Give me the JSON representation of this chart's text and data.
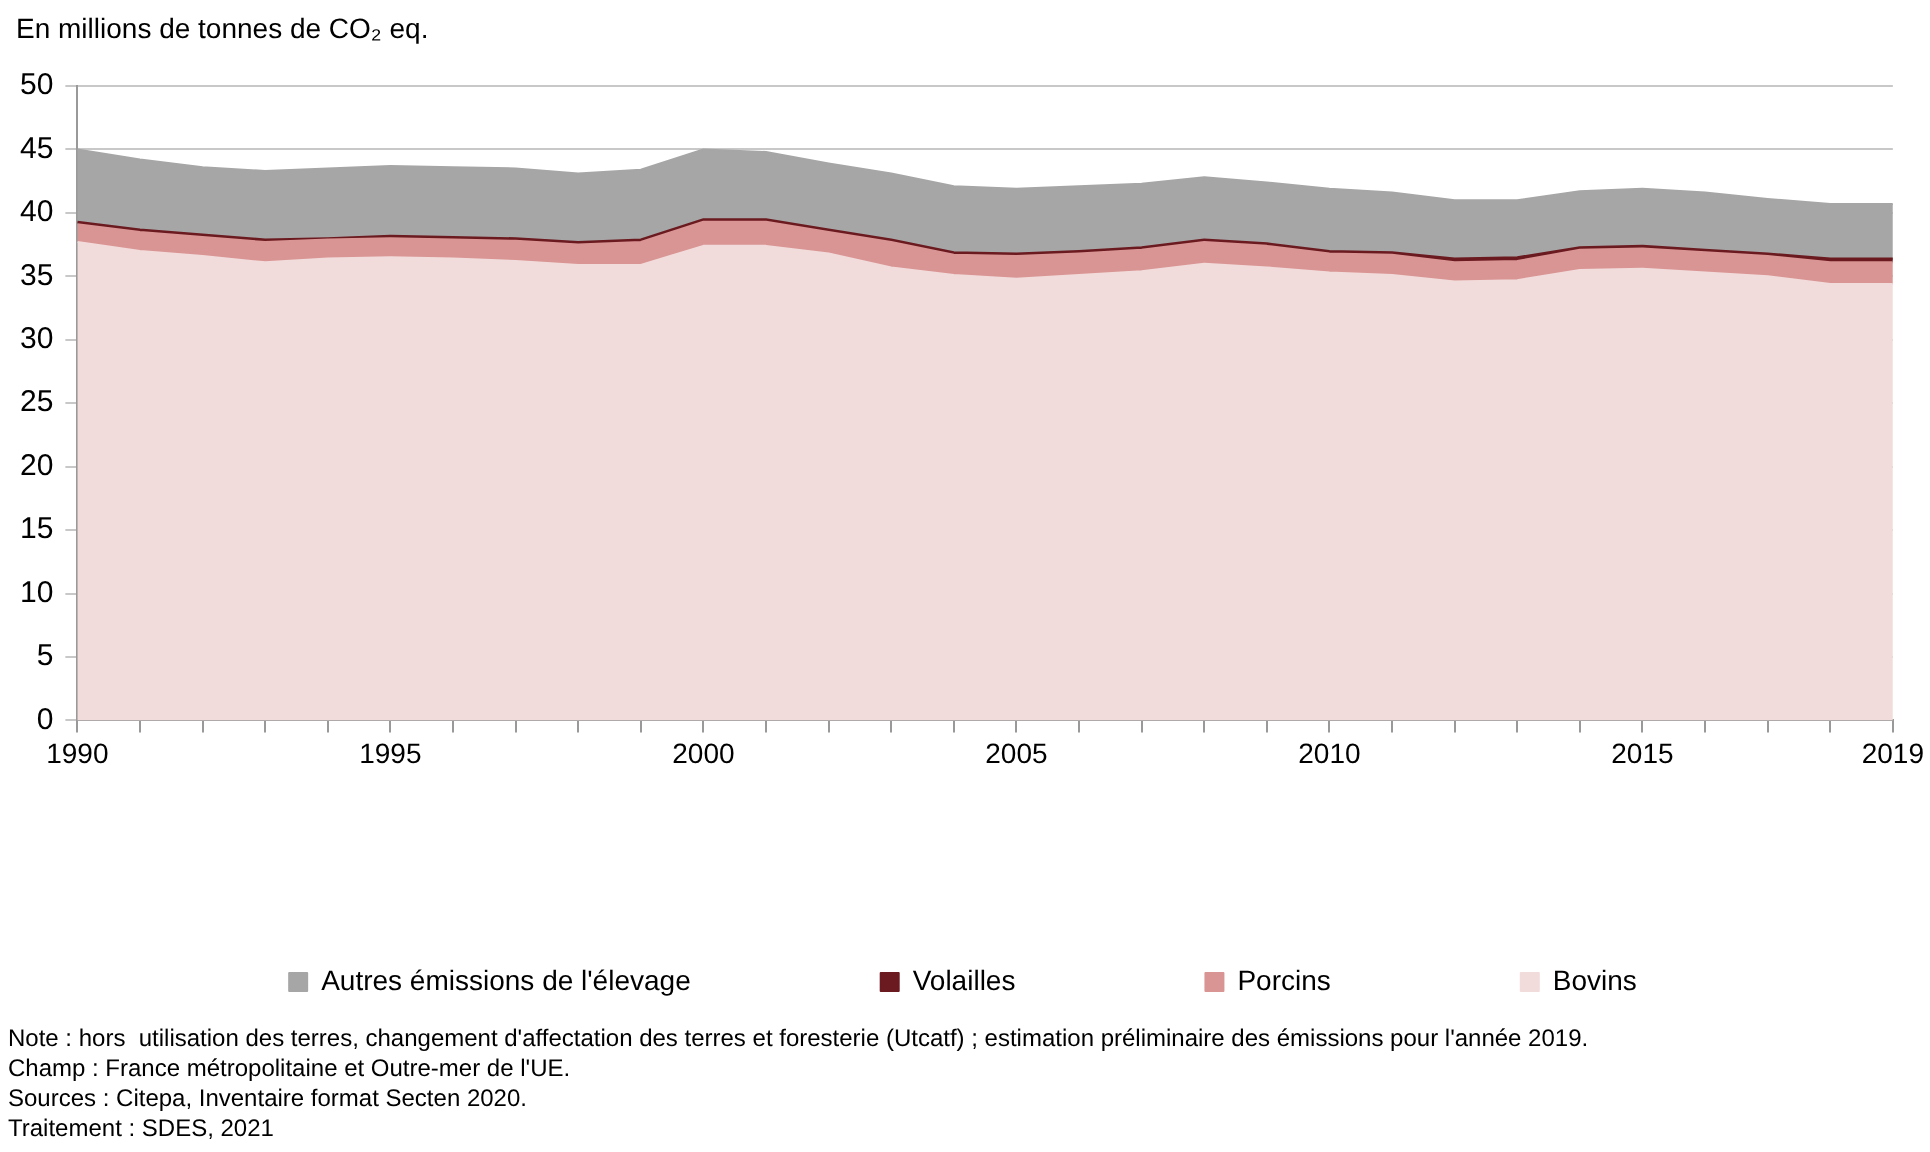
{
  "chart_data": {
    "type": "area",
    "stacked": true,
    "ylabel": "En millions de tonnes de CO₂ eq.",
    "x": [
      1990,
      1991,
      1992,
      1993,
      1994,
      1995,
      1996,
      1997,
      1998,
      1999,
      2000,
      2001,
      2002,
      2003,
      2004,
      2005,
      2006,
      2007,
      2008,
      2009,
      2010,
      2011,
      2012,
      2013,
      2014,
      2015,
      2016,
      2017,
      2018,
      2019
    ],
    "series": [
      {
        "name": "Bovins",
        "color": "#f2dcdb",
        "values": [
          37.7,
          37.0,
          36.6,
          36.1,
          36.4,
          36.5,
          36.4,
          36.2,
          35.9,
          35.9,
          37.4,
          37.4,
          36.8,
          35.7,
          35.1,
          34.8,
          35.1,
          35.4,
          36.0,
          35.7,
          35.3,
          35.1,
          34.6,
          34.7,
          35.5,
          35.6,
          35.3,
          35.0,
          34.4,
          34.4
        ]
      },
      {
        "name": "Porcins",
        "color": "#d99594",
        "values": [
          1.4,
          1.5,
          1.5,
          1.6,
          1.5,
          1.5,
          1.5,
          1.6,
          1.6,
          1.8,
          1.9,
          1.9,
          1.7,
          2.0,
          1.6,
          1.8,
          1.7,
          1.7,
          1.7,
          1.7,
          1.5,
          1.6,
          1.5,
          1.5,
          1.6,
          1.6,
          1.6,
          1.6,
          1.7,
          1.7
        ]
      },
      {
        "name": "Volailles",
        "color": "#6b1a1f",
        "values": [
          0.2,
          0.2,
          0.2,
          0.2,
          0.1,
          0.2,
          0.2,
          0.2,
          0.2,
          0.2,
          0.2,
          0.2,
          0.2,
          0.2,
          0.2,
          0.2,
          0.2,
          0.2,
          0.2,
          0.2,
          0.2,
          0.2,
          0.3,
          0.3,
          0.2,
          0.2,
          0.2,
          0.2,
          0.3,
          0.3
        ]
      },
      {
        "name": "Autres émissions de l'élevage",
        "color": "#a6a6a6",
        "values": [
          5.7,
          5.5,
          5.3,
          5.4,
          5.5,
          5.5,
          5.5,
          5.5,
          5.4,
          5.5,
          5.5,
          5.3,
          5.2,
          5.2,
          5.2,
          5.1,
          5.1,
          5.0,
          4.9,
          4.8,
          4.9,
          4.7,
          4.6,
          4.5,
          4.4,
          4.5,
          4.5,
          4.3,
          4.3,
          4.3
        ]
      }
    ],
    "xlim": [
      1990,
      2019
    ],
    "xticks": [
      1990,
      {
        "value": 1991,
        "label": null
      },
      {
        "value": 1992,
        "label": null
      },
      {
        "value": 1993,
        "label": null
      },
      {
        "value": 1994,
        "label": null
      },
      1995,
      {
        "value": 1996,
        "label": null
      },
      {
        "value": 1997,
        "label": null
      },
      {
        "value": 1998,
        "label": null
      },
      {
        "value": 1999,
        "label": null
      },
      2000,
      {
        "value": 2001,
        "label": null
      },
      {
        "value": 2002,
        "label": null
      },
      {
        "value": 2003,
        "label": null
      },
      {
        "value": 2004,
        "label": null
      },
      2005,
      {
        "value": 2006,
        "label": null
      },
      {
        "value": 2007,
        "label": null
      },
      {
        "value": 2008,
        "label": null
      },
      {
        "value": 2009,
        "label": null
      },
      2010,
      {
        "value": 2011,
        "label": null
      },
      {
        "value": 2012,
        "label": null
      },
      {
        "value": 2013,
        "label": null
      },
      {
        "value": 2014,
        "label": null
      },
      2015,
      {
        "value": 2016,
        "label": null
      },
      {
        "value": 2017,
        "label": null
      },
      {
        "value": 2018,
        "label": null
      },
      2019
    ],
    "ylim": [
      0,
      50
    ],
    "yticks": [
      0,
      5,
      10,
      15,
      20,
      25,
      30,
      35,
      40,
      45,
      50
    ],
    "grid": "y",
    "legend": "bottom",
    "marker": "none",
    "annotations": [
      "Note : hors  utilisation des terres, changement d'affectation des terres et foresterie (Utcatf) ; estimation préliminaire des émissions pour l'année 2019.",
      "Champ : France métropolitaine et Outre-mer de l'UE.",
      "Sources : Citepa, Inventaire format Secten 2020.",
      "Traitement : SDES, 2021"
    ]
  }
}
